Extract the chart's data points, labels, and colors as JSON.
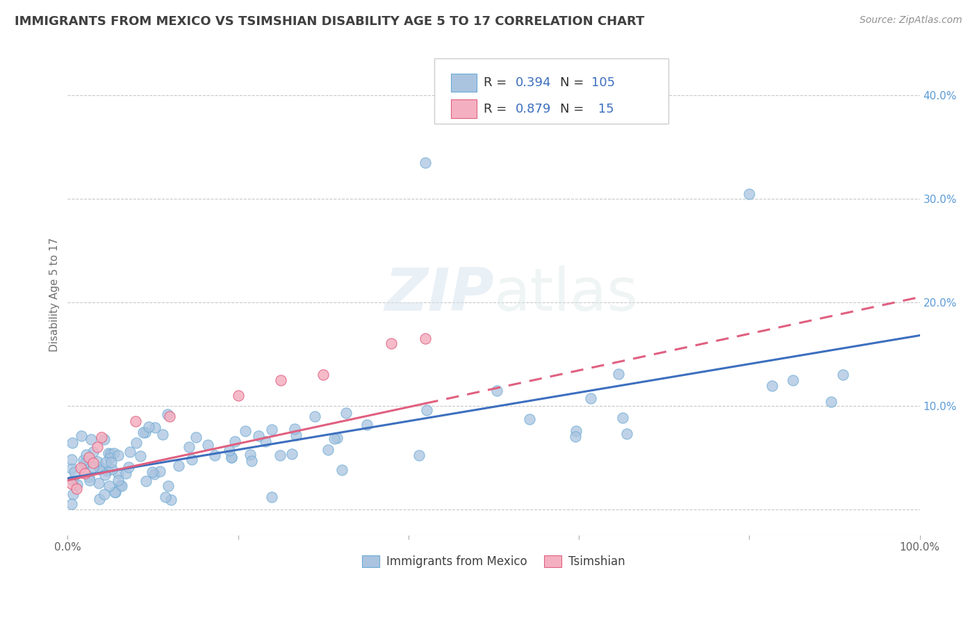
{
  "title": "IMMIGRANTS FROM MEXICO VS TSIMSHIAN DISABILITY AGE 5 TO 17 CORRELATION CHART",
  "source_text": "Source: ZipAtlas.com",
  "ylabel": "Disability Age 5 to 17",
  "xlim": [
    0.0,
    1.0
  ],
  "ylim": [
    -0.025,
    0.44
  ],
  "yticks": [
    0.0,
    0.1,
    0.2,
    0.3,
    0.4
  ],
  "series1_name": "Immigrants from Mexico",
  "series1_color": "#aac4e0",
  "series1_edge_color": "#6aaad4",
  "series1_R": 0.394,
  "series1_N": 105,
  "series1_line_color": "#3d6fbe",
  "series2_name": "Tsimshian",
  "series2_color": "#f4b0c0",
  "series2_edge_color": "#e06080",
  "series2_R": 0.879,
  "series2_N": 15,
  "series2_line_color": "#e06080",
  "watermark_ZIP": "ZIP",
  "watermark_atlas": "atlas",
  "background_color": "#ffffff",
  "grid_color": "#c8c8c8",
  "title_color": "#404040",
  "axis_label_color": "#707070",
  "trend1_x0": 0.0,
  "trend1_y0": 0.03,
  "trend1_x1": 1.0,
  "trend1_y1": 0.168,
  "trend2_x0": 0.0,
  "trend2_y0": 0.028,
  "trend2_x1": 1.0,
  "trend2_y1": 0.205,
  "trend2_solid_end": 0.42
}
